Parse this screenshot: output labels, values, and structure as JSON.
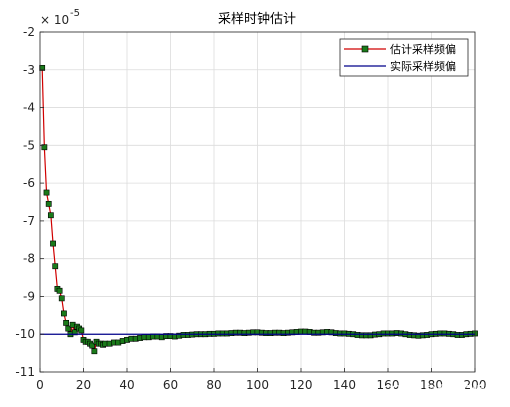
{
  "chart_data": {
    "type": "line",
    "title": "采样时钟估计",
    "exponent_label": "× 10",
    "exponent_power": "-5",
    "xlim": [
      0,
      200
    ],
    "ylim": [
      -11,
      -2
    ],
    "xticks": [
      0,
      20,
      40,
      60,
      80,
      100,
      120,
      140,
      160,
      180,
      200
    ],
    "yticks": [
      -11,
      -10,
      -9,
      -8,
      -7,
      -6,
      -5,
      -4,
      -3,
      -2
    ],
    "grid": true,
    "legend_position": "top-right",
    "series": [
      {
        "name": "估计采样频偏",
        "color": "#d00000",
        "marker": "square",
        "marker_fill": "#1a7a1a",
        "x": [
          1,
          2,
          3,
          4,
          5,
          6,
          7,
          8,
          9,
          10,
          11,
          12,
          13,
          14,
          15,
          16,
          17,
          18,
          19,
          20,
          21,
          22,
          23,
          24,
          25,
          26,
          27,
          28,
          29,
          30,
          32,
          34,
          36,
          38,
          40,
          42,
          44,
          46,
          48,
          50,
          52,
          54,
          56,
          58,
          60,
          62,
          64,
          66,
          68,
          70,
          72,
          74,
          76,
          78,
          80,
          82,
          84,
          86,
          88,
          90,
          92,
          94,
          96,
          98,
          100,
          102,
          104,
          106,
          108,
          110,
          112,
          114,
          116,
          118,
          120,
          122,
          124,
          126,
          128,
          130,
          132,
          134,
          136,
          138,
          140,
          142,
          144,
          146,
          148,
          150,
          152,
          154,
          156,
          158,
          160,
          162,
          164,
          166,
          168,
          170,
          172,
          174,
          176,
          178,
          180,
          182,
          184,
          186,
          188,
          190,
          192,
          194,
          196,
          198,
          200
        ],
        "y": [
          -2.95,
          -5.05,
          -6.25,
          -6.55,
          -6.85,
          -7.6,
          -8.2,
          -8.8,
          -8.85,
          -9.05,
          -9.45,
          -9.7,
          -9.85,
          -10.0,
          -9.75,
          -9.95,
          -9.8,
          -9.85,
          -9.9,
          -10.15,
          -10.2,
          -10.2,
          -10.25,
          -10.3,
          -10.45,
          -10.2,
          -10.25,
          -10.25,
          -10.28,
          -10.25,
          -10.25,
          -10.22,
          -10.22,
          -10.18,
          -10.15,
          -10.12,
          -10.12,
          -10.1,
          -10.08,
          -10.08,
          -10.06,
          -10.06,
          -10.08,
          -10.05,
          -10.05,
          -10.06,
          -10.04,
          -10.02,
          -10.02,
          -10.01,
          -10.0,
          -10.0,
          -10.0,
          -9.99,
          -9.99,
          -9.98,
          -9.98,
          -9.98,
          -9.97,
          -9.96,
          -9.96,
          -9.97,
          -9.96,
          -9.95,
          -9.95,
          -9.96,
          -9.97,
          -9.97,
          -9.96,
          -9.96,
          -9.97,
          -9.96,
          -9.95,
          -9.94,
          -9.93,
          -9.93,
          -9.94,
          -9.96,
          -9.96,
          -9.95,
          -9.94,
          -9.95,
          -9.97,
          -9.98,
          -9.98,
          -9.99,
          -10.0,
          -10.02,
          -10.03,
          -10.03,
          -10.03,
          -10.01,
          -10.0,
          -9.98,
          -9.98,
          -9.98,
          -9.97,
          -9.98,
          -10.0,
          -10.02,
          -10.03,
          -10.04,
          -10.03,
          -10.02,
          -10.0,
          -9.99,
          -9.98,
          -9.98,
          -9.99,
          -10.0,
          -10.02,
          -10.02,
          -10.0,
          -9.99,
          -9.98
        ]
      },
      {
        "name": "实际采样频偏",
        "color": "#00008b",
        "marker": "none",
        "x": [
          0,
          200
        ],
        "y": [
          -10.0,
          -10.0
        ]
      }
    ]
  },
  "watermark": "CSDN @我爱C编程"
}
